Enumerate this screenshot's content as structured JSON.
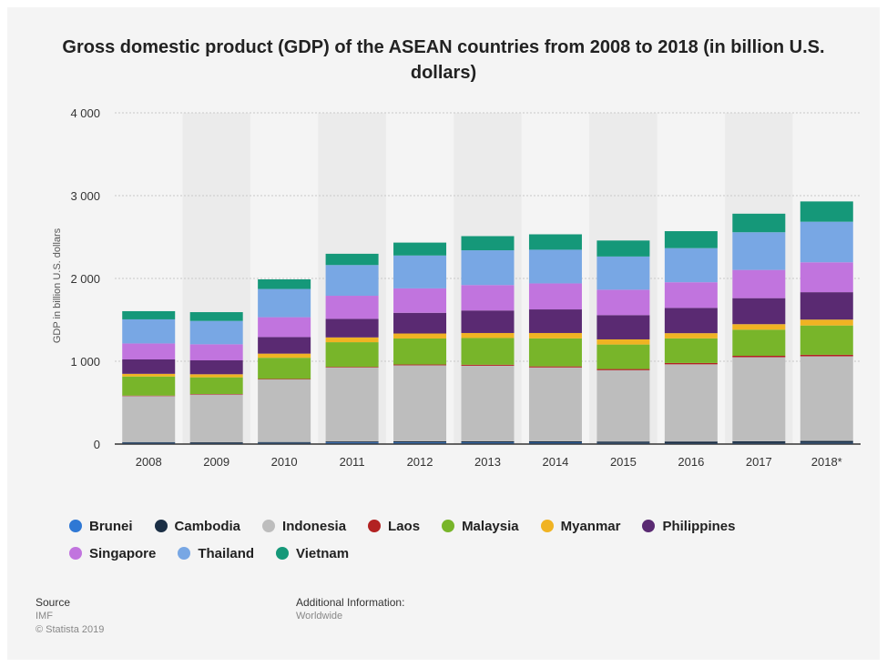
{
  "title": "Gross domestic product (GDP) of the ASEAN countries from 2008 to 2018 (in billion U.S. dollars)",
  "footer": {
    "source_label": "Source",
    "source_value": "IMF",
    "copyright": "© Statista 2019",
    "additional_label": "Additional Information:",
    "additional_value": "Worldwide"
  },
  "chart_data": {
    "type": "bar",
    "stacked": true,
    "ylabel": "GDP in billion U.S. dollars",
    "ylim": [
      0,
      4000
    ],
    "yticks": [
      0,
      1000,
      2000,
      3000,
      4000
    ],
    "ytick_labels": [
      "0",
      "1 000",
      "2 000",
      "3 000",
      "4 000"
    ],
    "grid": true,
    "legend_position": "bottom",
    "categories": [
      "2008",
      "2009",
      "2010",
      "2011",
      "2012",
      "2013",
      "2014",
      "2015",
      "2016",
      "2017",
      "2018*"
    ],
    "series": [
      {
        "name": "Brunei",
        "color": "#2f78d4",
        "values": [
          14,
          11,
          14,
          19,
          19,
          18,
          17,
          13,
          11,
          12,
          14
        ]
      },
      {
        "name": "Cambodia",
        "color": "#1b2f45",
        "values": [
          10,
          10,
          11,
          13,
          14,
          15,
          17,
          18,
          20,
          22,
          24
        ]
      },
      {
        "name": "Indonesia",
        "color": "#bdbdbd",
        "values": [
          555,
          577,
          755,
          892,
          918,
          913,
          891,
          861,
          932,
          1015,
          1022
        ]
      },
      {
        "name": "Laos",
        "color": "#b22222",
        "values": [
          6,
          6,
          7,
          8,
          10,
          12,
          13,
          14,
          16,
          17,
          18
        ]
      },
      {
        "name": "Malaysia",
        "color": "#78b52a",
        "values": [
          231,
          202,
          255,
          298,
          314,
          323,
          338,
          296,
          297,
          315,
          354
        ]
      },
      {
        "name": "Myanmar",
        "color": "#f0b323",
        "values": [
          32,
          37,
          50,
          58,
          60,
          60,
          65,
          62,
          63,
          67,
          71
        ]
      },
      {
        "name": "Philippines",
        "color": "#5a2a72",
        "values": [
          174,
          168,
          200,
          224,
          250,
          272,
          285,
          293,
          305,
          314,
          331
        ]
      },
      {
        "name": "Singapore",
        "color": "#c174de",
        "values": [
          193,
          194,
          240,
          279,
          295,
          307,
          314,
          307,
          310,
          341,
          361
        ]
      },
      {
        "name": "Thailand",
        "color": "#78a7e4",
        "values": [
          291,
          282,
          341,
          371,
          397,
          420,
          407,
          401,
          412,
          455,
          490
        ]
      },
      {
        "name": "Vietnam",
        "color": "#159879",
        "values": [
          99,
          106,
          116,
          136,
          156,
          171,
          186,
          193,
          205,
          224,
          245
        ]
      }
    ]
  }
}
